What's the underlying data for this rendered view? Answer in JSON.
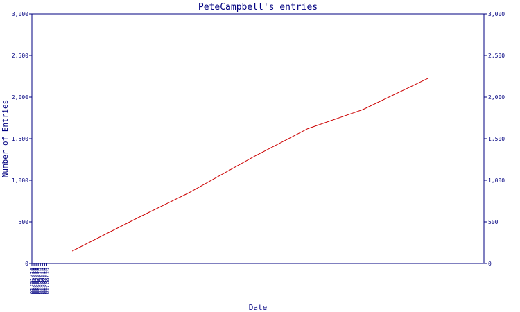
{
  "chart_data": {
    "type": "line",
    "title": "PeteCampbell's entries",
    "xlabel": "Date",
    "ylabel": "Number of Entries",
    "x_ticks": [
      "01/01/16",
      "01/02/16",
      "01/03/16",
      "01/04/16",
      "01/05/16",
      "01/06/16",
      "01/07/16",
      "01/08/16"
    ],
    "y_ticks": [
      "0",
      "500",
      "1,000",
      "1,500",
      "2,000",
      "2,500",
      "3,000"
    ],
    "ylim": [
      0,
      3000
    ],
    "xlim": [
      "2016-01-01",
      "2016-08-01"
    ],
    "grid": false,
    "colors": {
      "axis": "#000080",
      "line": "#cc0000"
    },
    "series": [
      {
        "values": [
          {
            "x": "2016-01-20",
            "y": 150
          },
          {
            "x": "2016-02-20",
            "y": 550
          },
          {
            "x": "2016-03-15",
            "y": 850
          },
          {
            "x": "2016-04-15",
            "y": 1290
          },
          {
            "x": "2016-05-10",
            "y": 1620
          },
          {
            "x": "2016-06-05",
            "y": 1850
          },
          {
            "x": "2016-07-06",
            "y": 2230
          }
        ]
      }
    ]
  }
}
